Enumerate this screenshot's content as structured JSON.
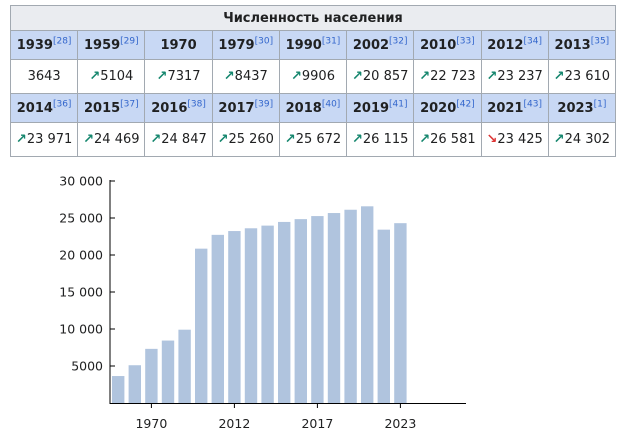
{
  "table": {
    "caption": "Численность населения",
    "rows": [
      [
        {
          "year": "1939",
          "ref": "[28]",
          "value": "3643",
          "trend": ""
        },
        {
          "year": "1959",
          "ref": "[29]",
          "value": "5104",
          "trend": "up"
        },
        {
          "year": "1970",
          "ref": "",
          "value": "7317",
          "trend": "up"
        },
        {
          "year": "1979",
          "ref": "[30]",
          "value": "8437",
          "trend": "up"
        },
        {
          "year": "1990",
          "ref": "[31]",
          "value": "9906",
          "trend": "up"
        },
        {
          "year": "2002",
          "ref": "[32]",
          "value": "20 857",
          "trend": "up"
        },
        {
          "year": "2010",
          "ref": "[33]",
          "value": "22 723",
          "trend": "up"
        },
        {
          "year": "2012",
          "ref": "[34]",
          "value": "23 237",
          "trend": "up"
        },
        {
          "year": "2013",
          "ref": "[35]",
          "value": "23 610",
          "trend": "up"
        }
      ],
      [
        {
          "year": "2014",
          "ref": "[36]",
          "value": "23 971",
          "trend": "up"
        },
        {
          "year": "2015",
          "ref": "[37]",
          "value": "24 469",
          "trend": "up"
        },
        {
          "year": "2016",
          "ref": "[38]",
          "value": "24 847",
          "trend": "up"
        },
        {
          "year": "2017",
          "ref": "[39]",
          "value": "25 260",
          "trend": "up"
        },
        {
          "year": "2018",
          "ref": "[40]",
          "value": "25 672",
          "trend": "up"
        },
        {
          "year": "2019",
          "ref": "[41]",
          "value": "26 115",
          "trend": "up"
        },
        {
          "year": "2020",
          "ref": "[42]",
          "value": "26 581",
          "trend": "up"
        },
        {
          "year": "2021",
          "ref": "[43]",
          "value": "23 425",
          "trend": "down"
        },
        {
          "year": "2023",
          "ref": "[1]",
          "value": "24 302",
          "trend": "up"
        }
      ]
    ],
    "arrow_up": "↗",
    "arrow_down": "↘",
    "colors": {
      "header": "#c8d8f4",
      "caption": "#eaecf0",
      "up": "#14866d",
      "down": "#dd3333",
      "ref": "#3366cc"
    }
  },
  "chart_data": {
    "type": "bar",
    "categories": [
      "1939",
      "1959",
      "1970",
      "1979",
      "1990",
      "2002",
      "2010",
      "2012",
      "2013",
      "2014",
      "2015",
      "2016",
      "2017",
      "2018",
      "2019",
      "2020",
      "2021",
      "2023"
    ],
    "values": [
      3643,
      5104,
      7317,
      8437,
      9906,
      20857,
      22723,
      23237,
      23610,
      23971,
      24469,
      24847,
      25260,
      25672,
      26115,
      26581,
      23425,
      24302
    ],
    "ylim": [
      0,
      30000
    ],
    "yticks": [
      {
        "value": 5000,
        "label": "5000"
      },
      {
        "value": 10000,
        "label": "10 000"
      },
      {
        "value": 15000,
        "label": "15 000"
      },
      {
        "value": 20000,
        "label": "20 000"
      },
      {
        "value": 25000,
        "label": "25 000"
      },
      {
        "value": 30000,
        "label": "30 000"
      }
    ],
    "xticks": [
      {
        "category": "1970",
        "label": "1970"
      },
      {
        "category": "2012",
        "label": "2012"
      },
      {
        "category": "2017",
        "label": "2017"
      },
      {
        "category": "2023",
        "label": "2023"
      }
    ],
    "bar_color": "#b0c4de",
    "axis_color": "#000000",
    "grid": false
  }
}
